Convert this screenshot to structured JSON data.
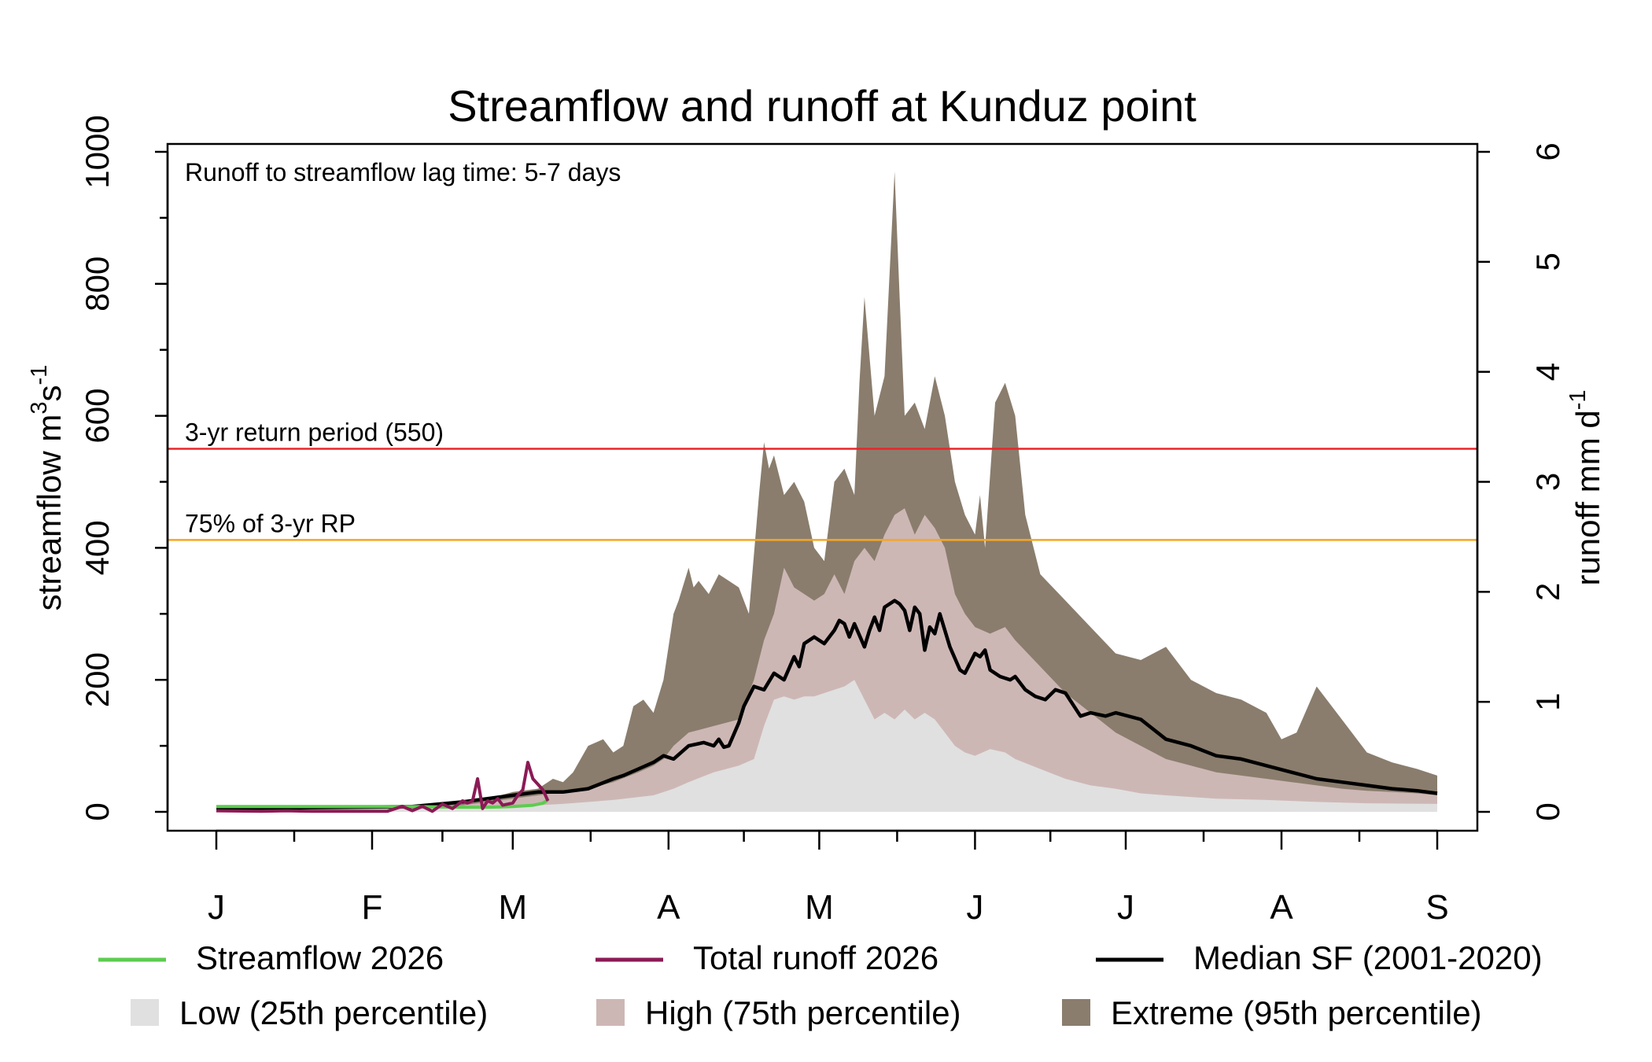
{
  "chart_data": {
    "type": "area",
    "title": "Streamflow and runoff at Kunduz point",
    "ylabel_left": {
      "base": "streamflow m",
      "sup1": "3",
      "mid": "s",
      "sup2": "-1"
    },
    "ylabel_right": {
      "base": "runoff mm d",
      "sup": "-1"
    },
    "annotation": "Runoff to streamflow lag time: 5-7 days",
    "ylim_left": [
      0,
      1000
    ],
    "ylim_right": [
      0,
      6
    ],
    "yticks_left": [
      "0",
      "200",
      "400",
      "600",
      "800",
      "1000"
    ],
    "yticks_right": [
      "0",
      "1",
      "2",
      "3",
      "4",
      "5",
      "6"
    ],
    "month_labels": [
      "J",
      "F",
      "M",
      "A",
      "M",
      "J",
      "J",
      "A",
      "S"
    ],
    "month_starts_day": [
      1,
      32,
      60,
      91,
      121,
      152,
      182,
      213,
      244
    ],
    "reference_lines": [
      {
        "label": "3-yr return period (550)",
        "value": 550,
        "color": "#e8262a"
      },
      {
        "label": "75% of 3-yr RP",
        "value": 412,
        "color": "#f5a623"
      }
    ],
    "legend": [
      {
        "label": "Streamflow 2026",
        "kind": "line",
        "color": "#5dcc4f"
      },
      {
        "label": "Total runoff 2026",
        "kind": "line",
        "color": "#8b1a55"
      },
      {
        "label": "Median SF (2001-2020)",
        "kind": "line",
        "color": "#000000"
      },
      {
        "label": "Low (25th percentile)",
        "kind": "box",
        "color": "#e0e0e0"
      },
      {
        "label": "High (75th percentile)",
        "kind": "box",
        "color": "#cdb7b5"
      },
      {
        "label": "Extreme (95th percentile)",
        "kind": "box",
        "color": "#8a7d6d"
      }
    ],
    "series": [
      {
        "name": "Extreme (95th percentile)",
        "axis": "left",
        "kind": "band",
        "color": "#8a7d6d",
        "x": [
          1,
          30,
          50,
          55,
          60,
          65,
          68,
          70,
          72,
          75,
          78,
          80,
          82,
          84,
          86,
          88,
          90,
          92,
          93,
          95,
          96,
          97,
          99,
          101,
          103,
          105,
          107,
          109,
          110,
          111,
          112,
          114,
          116,
          118,
          120,
          122,
          124,
          126,
          128,
          129,
          130,
          132,
          134,
          136,
          137,
          138,
          140,
          142,
          144,
          146,
          148,
          150,
          152,
          153,
          154,
          156,
          158,
          160,
          162,
          165,
          170,
          175,
          180,
          185,
          190,
          195,
          200,
          205,
          210,
          213,
          216,
          220,
          225,
          230,
          235,
          240,
          244
        ],
        "values": [
          8,
          9,
          12,
          20,
          30,
          35,
          50,
          45,
          60,
          100,
          110,
          90,
          100,
          160,
          170,
          150,
          200,
          300,
          320,
          370,
          340,
          350,
          330,
          360,
          350,
          340,
          300,
          480,
          560,
          520,
          540,
          480,
          500,
          470,
          400,
          380,
          500,
          520,
          480,
          650,
          780,
          600,
          660,
          970,
          780,
          600,
          620,
          580,
          660,
          600,
          500,
          450,
          420,
          480,
          400,
          620,
          650,
          600,
          450,
          360,
          320,
          280,
          240,
          230,
          250,
          200,
          180,
          170,
          150,
          110,
          120,
          190,
          140,
          90,
          75,
          65,
          55
        ]
      },
      {
        "name": "High (75th percentile)",
        "axis": "left",
        "kind": "band",
        "color": "#cdb7b5",
        "x": [
          1,
          30,
          50,
          55,
          60,
          65,
          70,
          75,
          80,
          85,
          88,
          90,
          92,
          95,
          100,
          105,
          108,
          110,
          112,
          114,
          116,
          118,
          120,
          122,
          124,
          126,
          128,
          130,
          132,
          134,
          136,
          138,
          140,
          142,
          144,
          146,
          148,
          150,
          152,
          155,
          158,
          160,
          165,
          170,
          175,
          180,
          185,
          190,
          195,
          200,
          205,
          210,
          215,
          220,
          225,
          230,
          235,
          240,
          244
        ],
        "values": [
          6,
          7,
          10,
          15,
          20,
          25,
          30,
          35,
          45,
          60,
          70,
          80,
          100,
          120,
          130,
          140,
          200,
          260,
          300,
          370,
          340,
          330,
          320,
          330,
          360,
          330,
          380,
          400,
          380,
          420,
          450,
          460,
          420,
          450,
          430,
          400,
          330,
          300,
          280,
          270,
          280,
          260,
          220,
          180,
          150,
          120,
          100,
          80,
          70,
          60,
          55,
          50,
          45,
          40,
          35,
          32,
          30,
          28,
          25
        ]
      },
      {
        "name": "Low (25th percentile)",
        "axis": "left",
        "kind": "band",
        "color": "#e0e0e0",
        "x": [
          1,
          50,
          60,
          70,
          80,
          88,
          92,
          95,
          100,
          105,
          108,
          110,
          112,
          114,
          116,
          118,
          120,
          122,
          124,
          126,
          128,
          130,
          132,
          134,
          136,
          138,
          140,
          142,
          144,
          146,
          148,
          150,
          152,
          155,
          158,
          160,
          165,
          170,
          175,
          180,
          185,
          190,
          200,
          210,
          220,
          230,
          244
        ],
        "values": [
          3,
          5,
          8,
          12,
          18,
          25,
          35,
          45,
          60,
          70,
          80,
          130,
          170,
          175,
          170,
          175,
          175,
          180,
          185,
          190,
          200,
          170,
          140,
          150,
          140,
          155,
          140,
          150,
          140,
          120,
          100,
          90,
          85,
          95,
          90,
          80,
          65,
          50,
          40,
          35,
          28,
          25,
          20,
          18,
          15,
          13,
          12
        ]
      },
      {
        "name": "Median SF (2001-2020)",
        "axis": "left",
        "kind": "line",
        "color": "#000000",
        "x": [
          1,
          40,
          50,
          55,
          60,
          65,
          70,
          75,
          80,
          82,
          85,
          88,
          90,
          92,
          95,
          98,
          100,
          101,
          102,
          103,
          105,
          106,
          108,
          110,
          112,
          114,
          116,
          117,
          118,
          120,
          122,
          124,
          125,
          126,
          127,
          128,
          130,
          131,
          132,
          133,
          134,
          136,
          137,
          138,
          139,
          140,
          141,
          142,
          143,
          144,
          145,
          147,
          149,
          150,
          152,
          153,
          154,
          155,
          157,
          159,
          160,
          162,
          164,
          166,
          168,
          170,
          173,
          175,
          178,
          180,
          185,
          190,
          195,
          200,
          205,
          210,
          215,
          220,
          225,
          230,
          235,
          240,
          244
        ],
        "values": [
          5,
          8,
          15,
          20,
          25,
          30,
          30,
          35,
          50,
          55,
          65,
          75,
          85,
          80,
          100,
          105,
          100,
          110,
          98,
          100,
          135,
          160,
          190,
          185,
          210,
          200,
          235,
          220,
          255,
          265,
          255,
          275,
          290,
          285,
          265,
          285,
          250,
          275,
          295,
          275,
          310,
          320,
          315,
          305,
          275,
          310,
          300,
          245,
          280,
          270,
          300,
          250,
          215,
          210,
          240,
          235,
          245,
          215,
          205,
          200,
          205,
          185,
          175,
          170,
          185,
          180,
          145,
          150,
          145,
          150,
          140,
          110,
          100,
          85,
          80,
          70,
          60,
          50,
          45,
          40,
          35,
          32,
          28
        ]
      },
      {
        "name": "Streamflow 2026",
        "axis": "left",
        "kind": "line",
        "color": "#5dcc4f",
        "x": [
          1,
          20,
          40,
          50,
          55,
          60,
          64,
          66,
          67
        ],
        "values": [
          8,
          8,
          8,
          7,
          7,
          8,
          10,
          13,
          18
        ]
      },
      {
        "name": "Total runoff 2026",
        "axis": "right",
        "kind": "line",
        "color": "#8b1a55",
        "x": [
          1,
          10,
          15,
          20,
          25,
          30,
          35,
          38,
          40,
          42,
          44,
          46,
          48,
          50,
          51,
          52,
          53,
          54,
          55,
          56,
          57,
          58,
          59,
          60,
          61,
          62,
          63,
          64,
          65,
          66,
          67
        ],
        "values": [
          0.01,
          0.005,
          0.01,
          0.005,
          0.005,
          0.005,
          0.005,
          0.05,
          0.01,
          0.05,
          0.005,
          0.07,
          0.03,
          0.1,
          0.08,
          0.1,
          0.3,
          0.03,
          0.1,
          0.08,
          0.12,
          0.06,
          0.07,
          0.08,
          0.15,
          0.2,
          0.45,
          0.3,
          0.25,
          0.2,
          0.1
        ]
      }
    ]
  }
}
